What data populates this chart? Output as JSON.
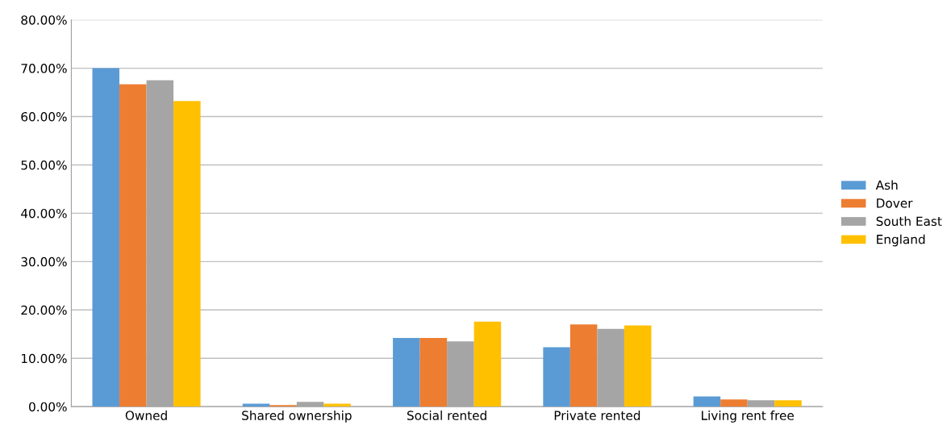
{
  "chart_data": {
    "type": "bar",
    "categories": [
      "Owned",
      "Shared ownership",
      "Social rented",
      "Private rented",
      "Living rent free"
    ],
    "series": [
      {
        "name": "Ash",
        "color": "#5b9bd5",
        "values": [
          70.0,
          0.6,
          14.2,
          12.3,
          2.1
        ]
      },
      {
        "name": "Dover",
        "color": "#ed7d31",
        "values": [
          66.7,
          0.3,
          14.2,
          17.0,
          1.5
        ]
      },
      {
        "name": "South East",
        "color": "#a5a5a5",
        "values": [
          67.5,
          1.0,
          13.5,
          16.1,
          1.3
        ]
      },
      {
        "name": "England",
        "color": "#ffc000",
        "values": [
          63.2,
          0.6,
          17.6,
          16.8,
          1.3
        ]
      }
    ],
    "ylim": [
      0,
      80
    ],
    "yticks": [
      {
        "value": 0,
        "label": "0.00%"
      },
      {
        "value": 10,
        "label": "10.00%"
      },
      {
        "value": 20,
        "label": "20.00%"
      },
      {
        "value": 30,
        "label": "30.00%"
      },
      {
        "value": 40,
        "label": "40.00%"
      },
      {
        "value": 50,
        "label": "50.00%"
      },
      {
        "value": 60,
        "label": "60.00%"
      },
      {
        "value": 70,
        "label": "70.00%"
      },
      {
        "value": 80,
        "label": "80.00%"
      }
    ],
    "grid": "y",
    "legend": "right"
  }
}
